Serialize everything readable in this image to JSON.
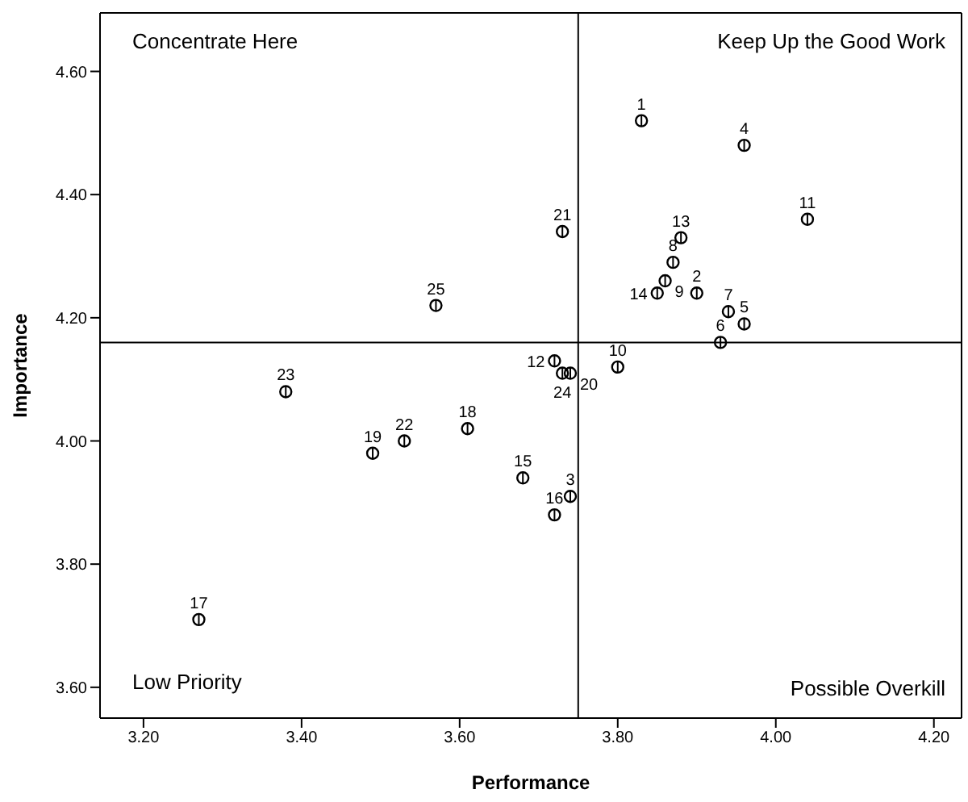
{
  "chart_data": {
    "type": "scatter",
    "xlabel": "Performance",
    "ylabel": "Importance",
    "xlim": [
      3.145,
      4.235
    ],
    "ylim": [
      3.55,
      4.695
    ],
    "xticks": [
      {
        "value": 3.2,
        "label": "3.20"
      },
      {
        "value": 3.4,
        "label": "3.40"
      },
      {
        "value": 3.6,
        "label": "3.60"
      },
      {
        "value": 3.8,
        "label": "3.80"
      },
      {
        "value": 4.0,
        "label": "4.00"
      },
      {
        "value": 4.2,
        "label": "4.20"
      }
    ],
    "yticks": [
      {
        "value": 3.6,
        "label": "3.60"
      },
      {
        "value": 3.8,
        "label": "3.80"
      },
      {
        "value": 4.0,
        "label": "4.00"
      },
      {
        "value": 4.2,
        "label": "4.20"
      },
      {
        "value": 4.4,
        "label": "4.40"
      },
      {
        "value": 4.6,
        "label": "4.60"
      }
    ],
    "grid": false,
    "marker": "circle",
    "series": [
      {
        "color": "#000000",
        "x": [
          3.83,
          3.9,
          3.74,
          3.96,
          3.96,
          3.93,
          3.94,
          3.87,
          3.86,
          3.8,
          4.04,
          3.72,
          3.88,
          3.85,
          3.68,
          3.72,
          3.27,
          3.61,
          3.49,
          3.74,
          3.73,
          3.53,
          3.38,
          3.73,
          3.57
        ],
        "values": [
          4.52,
          4.24,
          3.91,
          4.48,
          4.19,
          4.16,
          4.21,
          4.29,
          4.26,
          4.12,
          4.36,
          4.13,
          4.33,
          4.24,
          3.94,
          3.88,
          3.71,
          4.02,
          3.98,
          4.11,
          4.34,
          4.0,
          4.08,
          4.11,
          4.22
        ]
      }
    ],
    "ref_lines": [
      {
        "axis": "x",
        "value": 3.75,
        "color": "#000000"
      },
      {
        "axis": "y",
        "value": 4.16,
        "color": "#000000"
      }
    ],
    "annotations": [
      "Concentrate Here",
      "Keep Up the Good Work",
      "Low Priority",
      "Possible Overkill",
      {
        "text": "1",
        "x": 3.83,
        "y": 4.52
      },
      {
        "text": "2",
        "x": 3.9,
        "y": 4.24
      },
      {
        "text": "3",
        "x": 3.74,
        "y": 3.91
      },
      {
        "text": "4",
        "x": 3.96,
        "y": 4.48
      },
      {
        "text": "5",
        "x": 3.96,
        "y": 4.19
      },
      {
        "text": "6",
        "x": 3.93,
        "y": 4.16
      },
      {
        "text": "7",
        "x": 3.94,
        "y": 4.21
      },
      {
        "text": "8",
        "x": 3.87,
        "y": 4.29
      },
      {
        "text": "9",
        "x": 3.86,
        "y": 4.26
      },
      {
        "text": "10",
        "x": 3.8,
        "y": 4.12
      },
      {
        "text": "11",
        "x": 4.04,
        "y": 4.36
      },
      {
        "text": "12",
        "x": 3.72,
        "y": 4.13
      },
      {
        "text": "13",
        "x": 3.88,
        "y": 4.33
      },
      {
        "text": "14",
        "x": 3.85,
        "y": 4.24
      },
      {
        "text": "15",
        "x": 3.68,
        "y": 3.94
      },
      {
        "text": "16",
        "x": 3.72,
        "y": 3.88
      },
      {
        "text": "17",
        "x": 3.27,
        "y": 3.71
      },
      {
        "text": "18",
        "x": 3.61,
        "y": 4.02
      },
      {
        "text": "19",
        "x": 3.49,
        "y": 3.98
      },
      {
        "text": "20",
        "x": 3.74,
        "y": 4.11
      },
      {
        "text": "21",
        "x": 3.73,
        "y": 4.34
      },
      {
        "text": "22",
        "x": 3.53,
        "y": 4.0
      },
      {
        "text": "23",
        "x": 3.38,
        "y": 4.08
      },
      {
        "text": "24",
        "x": 3.73,
        "y": 4.11
      },
      {
        "text": "25",
        "x": 3.57,
        "y": 4.22
      }
    ]
  }
}
